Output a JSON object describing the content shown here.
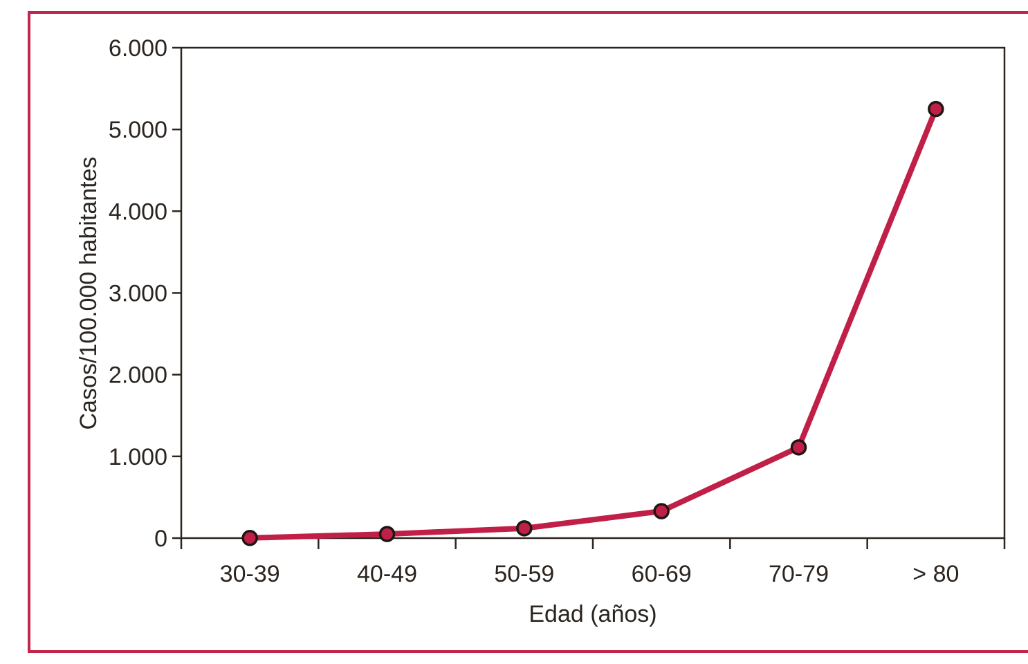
{
  "figure": {
    "background": "#ffffff",
    "border_color": "#c2254c",
    "border_width": 4
  },
  "chart_data": {
    "type": "line",
    "title": "",
    "xlabel": "Edad (años)",
    "ylabel": "Casos/100.000 habitantes",
    "categories": [
      "30-39",
      "40-49",
      "50-59",
      "60-69",
      "70-79",
      "> 80"
    ],
    "series": [
      {
        "name": "Casos por 100.000 habitantes",
        "values": [
          2,
          50,
          120,
          330,
          1110,
          5250
        ]
      }
    ],
    "ylim": [
      0,
      6000
    ],
    "ytick_step": 1000,
    "ytick_labels": [
      "0",
      "1.000",
      "2.000",
      "3.000",
      "4.000",
      "5.000",
      "6.000"
    ],
    "grid": false,
    "legend_position": "none",
    "line_color": "#c01f47",
    "marker_fill": "#c01f47",
    "marker_stroke": "#1d1713",
    "axis_color": "#2b241f"
  }
}
